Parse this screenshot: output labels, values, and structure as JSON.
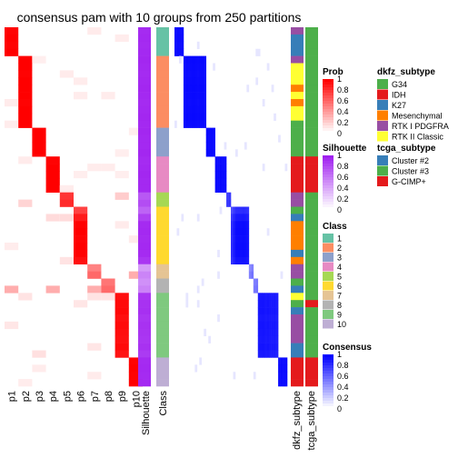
{
  "chart_data": {
    "type": "heatmap",
    "title": "consensus pam with 10 groups from 250 partitions",
    "n_samples": 50,
    "prob_columns": [
      "p1",
      "p2",
      "p3",
      "p4",
      "p5",
      "p6",
      "p7",
      "p8",
      "p9",
      "p10"
    ],
    "silhouette_label": "Silhouette",
    "class_label": "Class",
    "dkfz_label": "dkfz_subtype",
    "tcga_label": "tcga_subtype",
    "classes": [
      1,
      1,
      1,
      1,
      2,
      2,
      2,
      2,
      2,
      2,
      2,
      2,
      2,
      2,
      3,
      3,
      3,
      3,
      4,
      4,
      4,
      4,
      4,
      5,
      5,
      6,
      6,
      6,
      6,
      6,
      6,
      6,
      6,
      7,
      7,
      8,
      8,
      9,
      9,
      9,
      9,
      9,
      9,
      9,
      9,
      9,
      10,
      10,
      10,
      10
    ],
    "class_assign_note": "",
    "class_colors": {
      "1": "#66C2A5",
      "2": "#FC8D62",
      "3": "#8DA0CB",
      "4": "#E78AC3",
      "5": "#A6D854",
      "6": "#FFD92F",
      "7": "#E5C494",
      "8": "#B3B3B3",
      "9": "#7FC97F",
      "10": "#BEAED4"
    },
    "silhouette": [
      0.95,
      0.96,
      0.95,
      0.96,
      0.97,
      0.96,
      0.95,
      0.96,
      0.97,
      0.96,
      0.95,
      0.96,
      0.97,
      0.96,
      0.97,
      0.96,
      0.96,
      0.97,
      0.95,
      0.96,
      0.97,
      0.96,
      0.96,
      0.75,
      0.8,
      0.7,
      0.85,
      0.95,
      0.96,
      0.95,
      0.96,
      0.95,
      0.9,
      0.45,
      0.55,
      0.5,
      0.55,
      0.9,
      0.92,
      0.93,
      0.9,
      0.92,
      0.91,
      0.9,
      0.92,
      0.88,
      0.95,
      0.96,
      0.95,
      0.96
    ],
    "dkfz_subtype": [
      "RTK I PDGFRA",
      "K27",
      "K27",
      "K27",
      "RTK I PDGFRA",
      "RTK II Classic",
      "RTK II Classic",
      "RTK II Classic",
      "Mesenchymal",
      "RTK II Classic",
      "Mesenchymal",
      "RTK II Classic",
      "RTK II Classic",
      "G34",
      "G34",
      "G34",
      "G34",
      "G34",
      "IDH",
      "IDH",
      "IDH",
      "IDH",
      "IDH",
      "RTK I PDGFRA",
      "RTK I PDGFRA",
      "G34",
      "K27",
      "Mesenchymal",
      "Mesenchymal",
      "Mesenchymal",
      "Mesenchymal",
      "K27",
      "Mesenchymal",
      "RTK I PDGFRA",
      "RTK I PDGFRA",
      "G34",
      "K27",
      "RTK II Classic",
      "G34",
      "K27",
      "RTK I PDGFRA",
      "RTK I PDGFRA",
      "RTK I PDGFRA",
      "RTK I PDGFRA",
      "K27",
      "K27",
      "IDH",
      "IDH",
      "IDH",
      "IDH"
    ],
    "tcga_subtype": [
      "Cluster #3",
      "Cluster #3",
      "Cluster #3",
      "Cluster #3",
      "Cluster #3",
      "Cluster #3",
      "Cluster #3",
      "Cluster #3",
      "Cluster #3",
      "Cluster #3",
      "Cluster #3",
      "Cluster #3",
      "Cluster #3",
      "Cluster #3",
      "Cluster #3",
      "Cluster #3",
      "Cluster #3",
      "Cluster #3",
      "G-CIMP+",
      "G-CIMP+",
      "G-CIMP+",
      "G-CIMP+",
      "G-CIMP+",
      "Cluster #3",
      "Cluster #3",
      "Cluster #3",
      "Cluster #3",
      "Cluster #3",
      "Cluster #3",
      "Cluster #3",
      "Cluster #3",
      "Cluster #3",
      "Cluster #3",
      "Cluster #3",
      "Cluster #3",
      "Cluster #3",
      "Cluster #3",
      "Cluster #3",
      "G-CIMP+",
      "Cluster #3",
      "Cluster #3",
      "Cluster #3",
      "Cluster #3",
      "Cluster #3",
      "Cluster #3",
      "Cluster #3",
      "G-CIMP+",
      "G-CIMP+",
      "G-CIMP+",
      "G-CIMP+"
    ],
    "legends": {
      "prob": {
        "title": "Prob",
        "ticks": [
          "1",
          "0.8",
          "0.6",
          "0.4",
          "0.2",
          "0"
        ]
      },
      "silhouette": {
        "title": "Silhouette",
        "ticks": [
          "1",
          "0.8",
          "0.6",
          "0.4",
          "0.2",
          "0"
        ]
      },
      "class": {
        "title": "Class",
        "items": [
          "1",
          "2",
          "3",
          "4",
          "5",
          "6",
          "7",
          "8",
          "9",
          "10"
        ]
      },
      "consensus": {
        "title": "Consensus",
        "ticks": [
          "1",
          "0.8",
          "0.6",
          "0.4",
          "0.2",
          "0"
        ]
      },
      "dkfz": {
        "title": "dkfz_subtype",
        "items": [
          {
            "label": "G34",
            "color": "#4DAF4A"
          },
          {
            "label": "IDH",
            "color": "#E41A1C"
          },
          {
            "label": "K27",
            "color": "#377EB8"
          },
          {
            "label": "Mesenchymal",
            "color": "#FF7F00"
          },
          {
            "label": "RTK I PDGFRA",
            "color": "#984EA3"
          },
          {
            "label": "RTK II Classic",
            "color": "#FFFF33"
          }
        ]
      },
      "tcga": {
        "title": "tcga_subtype",
        "items": [
          {
            "label": "Cluster #2",
            "color": "#377EB8"
          },
          {
            "label": "Cluster #3",
            "color": "#4DAF4A"
          },
          {
            "label": "G-CIMP+",
            "color": "#E41A1C"
          }
        ]
      }
    },
    "colors": {
      "prob_high": "#FF0000",
      "consensus_high": "#0000FF",
      "silhouette_high": "#A020F0"
    }
  }
}
